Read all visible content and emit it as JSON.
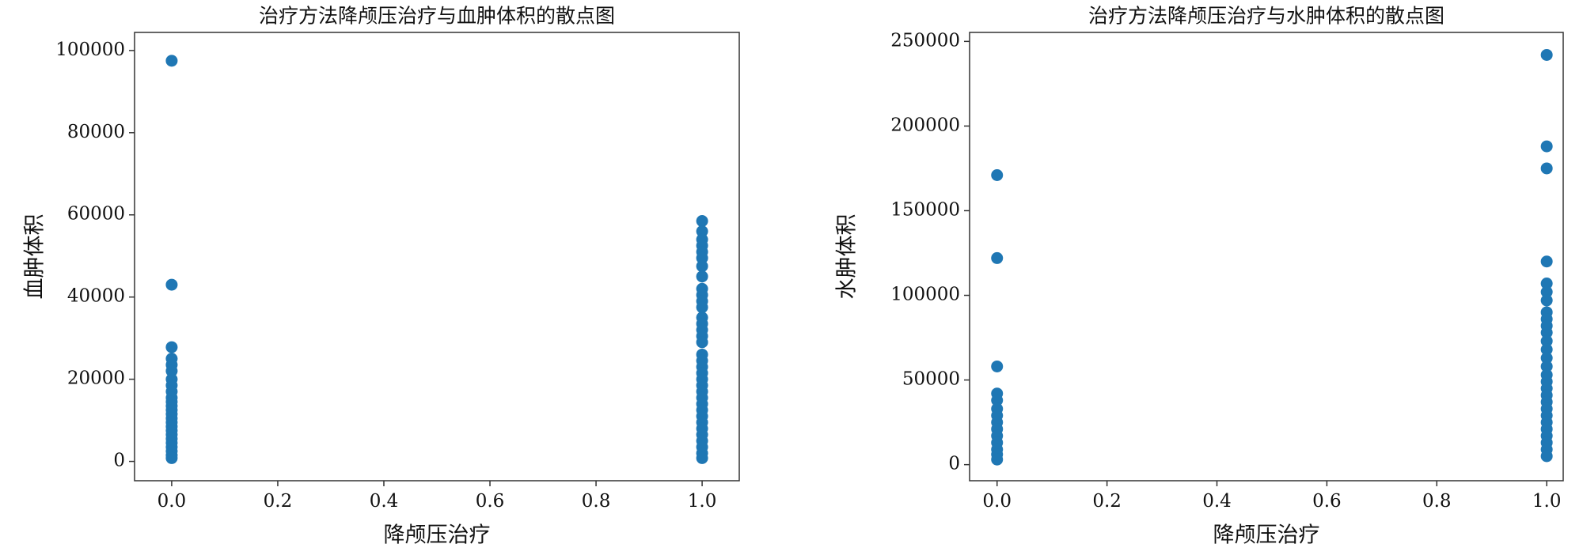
{
  "chart_data": [
    {
      "type": "scatter",
      "title": "治疗方法降颅压治疗与血肿体积的散点图",
      "xlabel": "降颅压治疗",
      "ylabel": "血肿体积",
      "color": "#1f77b4",
      "x": [
        0,
        0,
        0,
        0,
        0,
        0,
        0,
        0,
        0,
        0,
        0,
        0,
        0,
        0,
        0,
        0,
        0,
        0,
        0,
        0,
        0,
        0,
        0,
        0,
        0,
        1,
        1,
        1,
        1,
        1,
        1,
        1,
        1,
        1,
        1,
        1,
        1,
        1,
        1,
        1,
        1,
        1,
        1,
        1,
        1,
        1,
        1,
        1,
        1,
        1,
        1,
        1,
        1,
        1,
        1,
        1,
        1,
        1,
        1,
        1
      ],
      "y": [
        97500,
        43000,
        27800,
        25000,
        23500,
        22000,
        20000,
        18500,
        17000,
        15500,
        14500,
        13500,
        12500,
        11500,
        10500,
        9500,
        8500,
        7500,
        6500,
        5500,
        4500,
        3500,
        2500,
        1500,
        800,
        58500,
        56000,
        54000,
        52500,
        51000,
        49500,
        47500,
        45000,
        42000,
        40500,
        39000,
        37500,
        35000,
        33500,
        32000,
        30500,
        29000,
        26000,
        24500,
        23000,
        21500,
        20000,
        18500,
        17000,
        15500,
        14000,
        12500,
        11000,
        9500,
        8000,
        6500,
        5000,
        3500,
        2000,
        800
      ],
      "xlim": [
        -0.07,
        1.07
      ],
      "ylim": [
        -4700,
        104400
      ],
      "xticks": [
        {
          "value": 0,
          "label": "0.0"
        },
        {
          "value": 0.2,
          "label": "0.2"
        },
        {
          "value": 0.4,
          "label": "0.4"
        },
        {
          "value": 0.6,
          "label": "0.6"
        },
        {
          "value": 0.8,
          "label": "0.8"
        },
        {
          "value": 1,
          "label": "1.0"
        }
      ],
      "yticks": [
        0,
        20000,
        40000,
        60000,
        80000,
        100000
      ]
    },
    {
      "type": "scatter",
      "title": "治疗方法降颅压治疗与水肿体积的散点图",
      "xlabel": "降颅压治疗",
      "ylabel": "水肿体积",
      "color": "#1f77b4",
      "x": [
        0,
        0,
        0,
        0,
        0,
        0,
        0,
        0,
        0,
        0,
        0,
        0,
        0,
        0,
        1,
        1,
        1,
        1,
        1,
        1,
        1,
        1,
        1,
        1,
        1,
        1,
        1,
        1,
        1,
        1,
        1,
        1,
        1,
        1,
        1,
        1,
        1,
        1,
        1,
        1,
        1,
        1
      ],
      "y": [
        171000,
        122000,
        58000,
        42000,
        38000,
        33000,
        29000,
        25000,
        21000,
        17000,
        13000,
        9000,
        6000,
        3000,
        242000,
        188000,
        175000,
        120000,
        107000,
        102000,
        97000,
        90000,
        86000,
        82000,
        78000,
        73000,
        68000,
        63000,
        58000,
        53000,
        49000,
        45000,
        41000,
        37000,
        33000,
        29000,
        25000,
        21000,
        17000,
        13000,
        9000,
        5000
      ],
      "xlim": [
        -0.05,
        1.03
      ],
      "ylim": [
        -9500,
        255300
      ],
      "xticks": [
        {
          "value": 0,
          "label": "0.0"
        },
        {
          "value": 0.2,
          "label": "0.2"
        },
        {
          "value": 0.4,
          "label": "0.4"
        },
        {
          "value": 0.6,
          "label": "0.6"
        },
        {
          "value": 0.8,
          "label": "0.8"
        },
        {
          "value": 1,
          "label": "1.0"
        }
      ],
      "yticks": [
        0,
        50000,
        100000,
        150000,
        200000,
        250000
      ]
    }
  ]
}
